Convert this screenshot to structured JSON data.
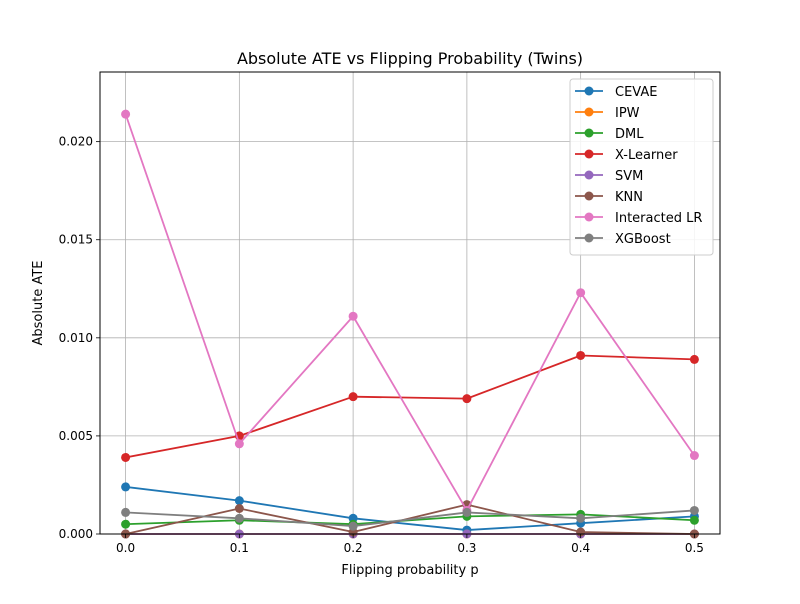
{
  "chart_data": {
    "type": "line",
    "title": "Absolute ATE vs Flipping Probability (Twins)",
    "xlabel": "Flipping probability p",
    "ylabel": "Absolute ATE",
    "x": [
      0.0,
      0.1,
      0.2,
      0.3,
      0.4,
      0.5
    ],
    "xlim": [
      -0.0225,
      0.5225
    ],
    "ylim": [
      0.0,
      0.02355
    ],
    "xticks": [
      0.0,
      0.1,
      0.2,
      0.3,
      0.4,
      0.5
    ],
    "xtick_labels": [
      "0.0",
      "0.1",
      "0.2",
      "0.3",
      "0.4",
      "0.5"
    ],
    "yticks": [
      0.0,
      0.005,
      0.01,
      0.015,
      0.02
    ],
    "ytick_labels": [
      "0.000",
      "0.005",
      "0.010",
      "0.015",
      "0.020"
    ],
    "grid": true,
    "legend_position": "top-right",
    "series": [
      {
        "name": "CEVAE",
        "color": "#1f77b4",
        "values": [
          0.0024,
          0.0017,
          0.0008,
          0.0002,
          0.00055,
          0.0009
        ]
      },
      {
        "name": "IPW",
        "color": "#ff7f0e",
        "values": [
          0.0,
          0.0,
          0.0,
          0.0,
          0.0,
          0.0
        ]
      },
      {
        "name": "DML",
        "color": "#2ca02c",
        "values": [
          0.0005,
          0.0007,
          0.0005,
          0.0009,
          0.001,
          0.0007
        ]
      },
      {
        "name": "X-Learner",
        "color": "#d62728",
        "values": [
          0.0039,
          0.005,
          0.007,
          0.0069,
          0.0091,
          0.0089
        ]
      },
      {
        "name": "SVM",
        "color": "#9467bd",
        "values": [
          0.0,
          0.0,
          0.0,
          0.0,
          0.0,
          0.0
        ]
      },
      {
        "name": "KNN",
        "color": "#8c564b",
        "values": [
          0.0,
          0.0013,
          0.0001,
          0.0015,
          0.0001,
          0.0
        ]
      },
      {
        "name": "Interacted LR",
        "color": "#e377c2",
        "values": [
          0.0214,
          0.0046,
          0.0111,
          0.0012,
          0.0123,
          0.004
        ]
      },
      {
        "name": "XGBoost",
        "color": "#7f7f7f",
        "values": [
          0.0011,
          0.0008,
          0.0004,
          0.0011,
          0.0008,
          0.0012
        ]
      }
    ]
  }
}
